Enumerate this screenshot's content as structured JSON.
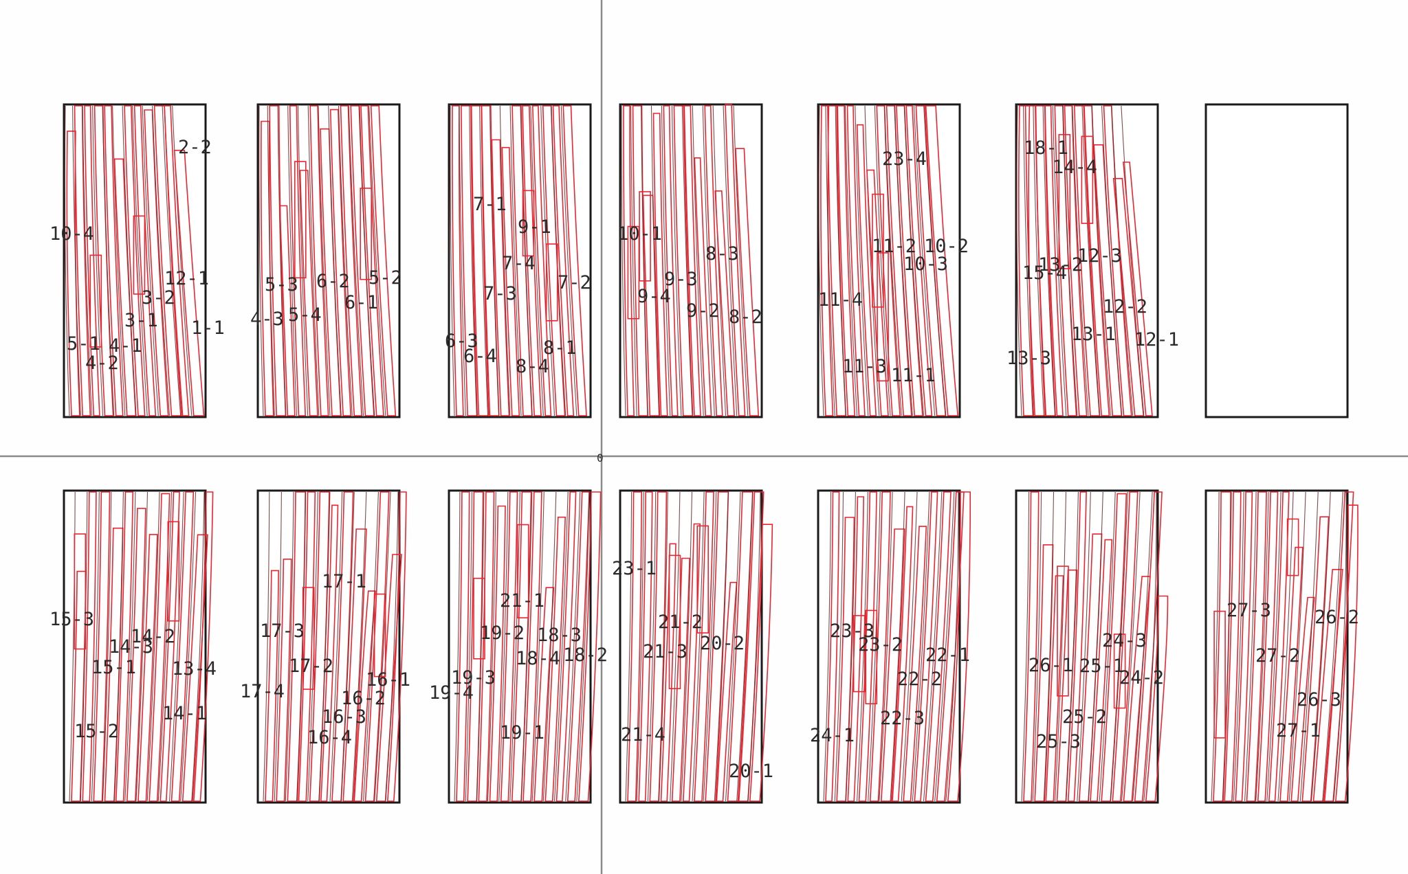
{
  "colors": {
    "background": "#fefefe",
    "frame": "#1a1a1a",
    "strip_outline": "#ea2530",
    "grain_line": "#6b2b2b",
    "axis": "#8a8a8a",
    "label": "#2a2a2a"
  },
  "origin_marker": "0",
  "panels": [
    {
      "id": "A1",
      "labels": [
        "2-2",
        "10-4",
        "12-1",
        "3-2",
        "3-1",
        "1-1",
        "5-1",
        "4-1",
        "4-2"
      ]
    },
    {
      "id": "A2",
      "labels": [
        "5-3",
        "6-2",
        "5-2",
        "6-1",
        "4-3",
        "5-4"
      ]
    },
    {
      "id": "A3",
      "labels": [
        "7-1",
        "9-1",
        "7-4",
        "7-2",
        "7-3",
        "6-3",
        "6-4",
        "8-1",
        "8-4"
      ]
    },
    {
      "id": "A4",
      "labels": [
        "10-1",
        "8-3",
        "9-3",
        "9-4",
        "9-2",
        "8-2"
      ]
    },
    {
      "id": "A5",
      "labels": [
        "23-4",
        "11-2",
        "10-2",
        "10-3",
        "11-4",
        "11-3",
        "11-1"
      ]
    },
    {
      "id": "A6",
      "labels": [
        "18-1",
        "14-4",
        "15-4",
        "13-2",
        "12-3",
        "12-2",
        "13-1",
        "12-1",
        "13-3"
      ]
    },
    {
      "id": "A7",
      "labels": []
    },
    {
      "id": "B1",
      "labels": [
        "15-3",
        "14-2",
        "14-3",
        "15-1",
        "13-4",
        "14-1",
        "15-2"
      ]
    },
    {
      "id": "B2",
      "labels": [
        "17-1",
        "17-3",
        "17-2",
        "16-1",
        "17-4",
        "16-2",
        "16-3",
        "16-4"
      ]
    },
    {
      "id": "B3",
      "labels": [
        "21-1",
        "19-2",
        "18-3",
        "18-2",
        "18-4",
        "19-3",
        "19-4",
        "19-1"
      ]
    },
    {
      "id": "B4",
      "labels": [
        "23-1",
        "21-2",
        "21-3",
        "20-2",
        "21-4",
        "20-1"
      ]
    },
    {
      "id": "B5",
      "labels": [
        "23-3",
        "23-2",
        "22-1",
        "22-2",
        "22-3",
        "24-1"
      ]
    },
    {
      "id": "B6",
      "labels": [
        "24-3",
        "25-1",
        "24-2",
        "26-1",
        "25-2",
        "25-3"
      ]
    },
    {
      "id": "B7",
      "labels": [
        "27-3",
        "26-2",
        "27-2",
        "26-3",
        "27-1"
      ]
    }
  ]
}
